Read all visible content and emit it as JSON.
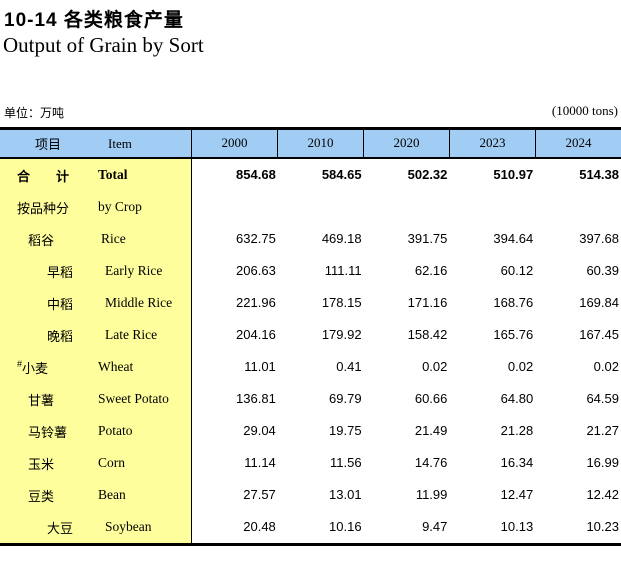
{
  "page": {
    "title_cn": "10-14 各类粮食产量",
    "title_en": "Output of Grain by Sort",
    "unit_cn": "单位：万吨",
    "unit_en": "(10000 tons)"
  },
  "colors": {
    "header_bg": "#A1CDF4",
    "label_column_bg": "#FEFE9C",
    "border": "#000000",
    "text": "#000000"
  },
  "table": {
    "header": {
      "item_cn": "项目",
      "item_en": "Item",
      "years": [
        "2000",
        "2010",
        "2020",
        "2023",
        "2024"
      ]
    },
    "rows": [
      {
        "cn": "合　　计",
        "en": "Total",
        "values": [
          "854.68",
          "584.65",
          "502.32",
          "510.97",
          "514.38"
        ]
      },
      {
        "cn": "按品种分",
        "en": "by Crop",
        "values": []
      },
      {
        "cn": "稻谷",
        "en": "Rice",
        "values": [
          "632.75",
          "469.18",
          "391.75",
          "394.64",
          "397.68"
        ]
      },
      {
        "cn": "早稻",
        "en": "Early Rice",
        "values": [
          "206.63",
          "111.11",
          "62.16",
          "60.12",
          "60.39"
        ]
      },
      {
        "cn": "中稻",
        "en": "Middle Rice",
        "values": [
          "221.96",
          "178.15",
          "171.16",
          "168.76",
          "169.84"
        ]
      },
      {
        "cn": "晚稻",
        "en": "Late Rice",
        "values": [
          "204.16",
          "179.92",
          "158.42",
          "165.76",
          "167.45"
        ]
      },
      {
        "cn_prefix": "#",
        "cn": "小麦",
        "en": "Wheat",
        "values": [
          "11.01",
          "0.41",
          "0.02",
          "0.02",
          "0.02"
        ]
      },
      {
        "cn": "甘薯",
        "en": "Sweet Potato",
        "values": [
          "136.81",
          "69.79",
          "60.66",
          "64.80",
          "64.59"
        ]
      },
      {
        "cn": "马铃薯",
        "en": "Potato",
        "values": [
          "29.04",
          "19.75",
          "21.49",
          "21.28",
          "21.27"
        ]
      },
      {
        "cn": "玉米",
        "en": "Corn",
        "values": [
          "11.14",
          "11.56",
          "14.76",
          "16.34",
          "16.99"
        ]
      },
      {
        "cn": "豆类",
        "en": "Bean",
        "values": [
          "27.57",
          "13.01",
          "11.99",
          "12.47",
          "12.42"
        ]
      },
      {
        "cn": "大豆",
        "en": "Soybean",
        "values": [
          "20.48",
          "10.16",
          "9.47",
          "10.13",
          "10.23"
        ]
      }
    ]
  }
}
